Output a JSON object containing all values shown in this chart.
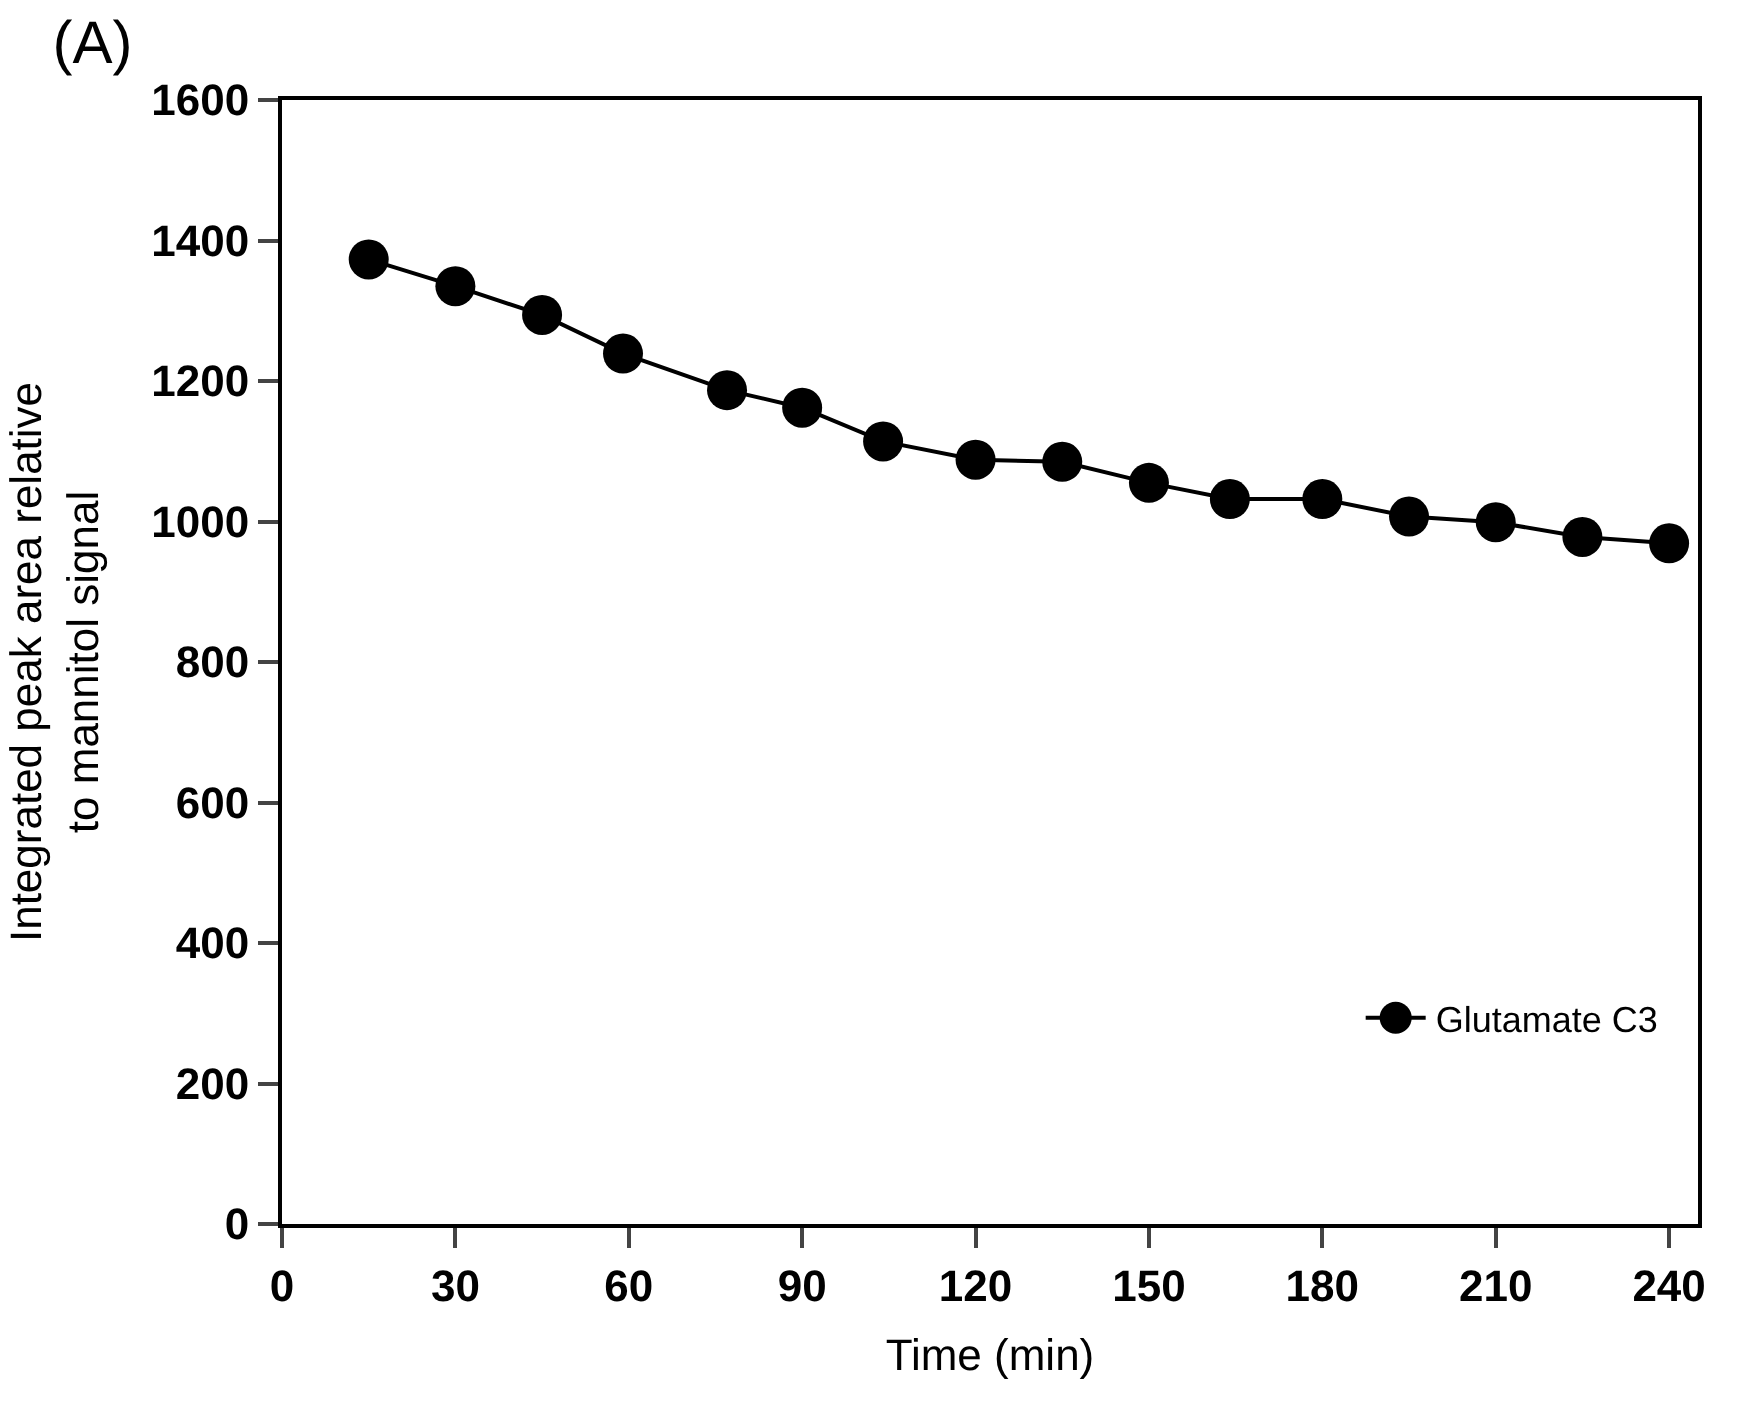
{
  "chart_data": {
    "type": "line",
    "title": "(A)",
    "xlabel": "Time (min)",
    "ylabel": "Integrated peak area relative\nto mannitol signal",
    "x": [
      15,
      30,
      45,
      59,
      77,
      90,
      104,
      120,
      135,
      150,
      164,
      180,
      195,
      210,
      225,
      240
    ],
    "series": [
      {
        "name": "Glutamate C3",
        "color": "#000000",
        "values": [
          1373,
          1335,
          1294,
          1239,
          1187,
          1162,
          1114,
          1088,
          1085,
          1055,
          1032,
          1032,
          1007,
          999,
          978,
          969
        ]
      }
    ],
    "xlim": [
      0,
      245
    ],
    "xticks": [
      0,
      30,
      60,
      90,
      120,
      150,
      180,
      210,
      240
    ],
    "ylim": [
      0,
      1600
    ],
    "yticks": [
      0,
      200,
      400,
      600,
      800,
      1000,
      1200,
      1400,
      1600
    ],
    "marker": "circle",
    "line_style": "solid",
    "legend": "bottom right"
  }
}
